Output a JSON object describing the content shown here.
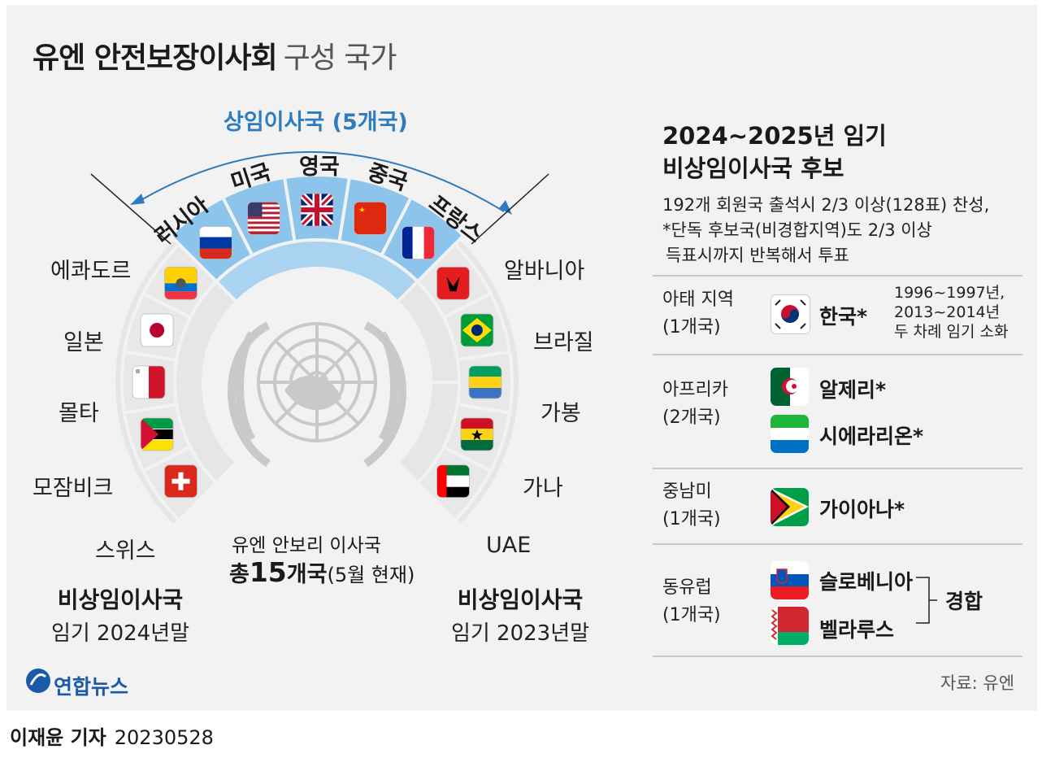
{
  "title": {
    "bold": "유엔 안전보장이사회",
    "light": "구성 국가"
  },
  "permanent": {
    "title": "상임이사국 (5개국)",
    "members": [
      "러시아",
      "미국",
      "영국",
      "중국",
      "프랑스"
    ]
  },
  "left_members": [
    "에콰도르",
    "일본",
    "몰타",
    "모잠비크",
    "스위스"
  ],
  "right_members": [
    "알바니아",
    "브라질",
    "가봉",
    "가나",
    "UAE"
  ],
  "left_caption": {
    "title": "비상임이사국",
    "term": "임기 2024년말"
  },
  "right_caption": {
    "title": "비상임이사국",
    "term": "임기 2023년말"
  },
  "total": {
    "line1": "유엔 안보리 이사국",
    "prefix": "총",
    "num": "15",
    "unit": "개국",
    "note": "(5월 현재)"
  },
  "candidates": {
    "title_line1": "2024~2025년 임기",
    "title_line2": "비상임이사국 후보",
    "desc": [
      "192개 회원국 출석시 2/3 이상(128표) 찬성,",
      "*단독 후보국(비경합지역)도 2/3 이상",
      "득표시까지 반복해서 투표"
    ],
    "regions": [
      {
        "name": "아태 지역",
        "count": "(1개국)",
        "countries": [
          "한국*"
        ],
        "note": [
          "1996~1997년,",
          "2013~2014년",
          "두 차례 임기 소화"
        ]
      },
      {
        "name": "아프리카",
        "count": "(2개국)",
        "countries": [
          "알제리*",
          "시에라리온*"
        ]
      },
      {
        "name": "중남미",
        "count": "(1개국)",
        "countries": [
          "가이아나*"
        ]
      },
      {
        "name": "동유럽",
        "count": "(1개국)",
        "countries": [
          "슬로베니아",
          "벨라루스"
        ],
        "bracket": "경합"
      }
    ],
    "source": "자료: 유엔"
  },
  "logo": "연합뉴스",
  "footer": {
    "author": "이재윤 기자",
    "date": "20230528"
  },
  "colors": {
    "permanent_band": "#8dc4ec",
    "ring": "#d9d9d9",
    "accent": "#2e7bbf",
    "title_blue": "#2e7bbf"
  }
}
